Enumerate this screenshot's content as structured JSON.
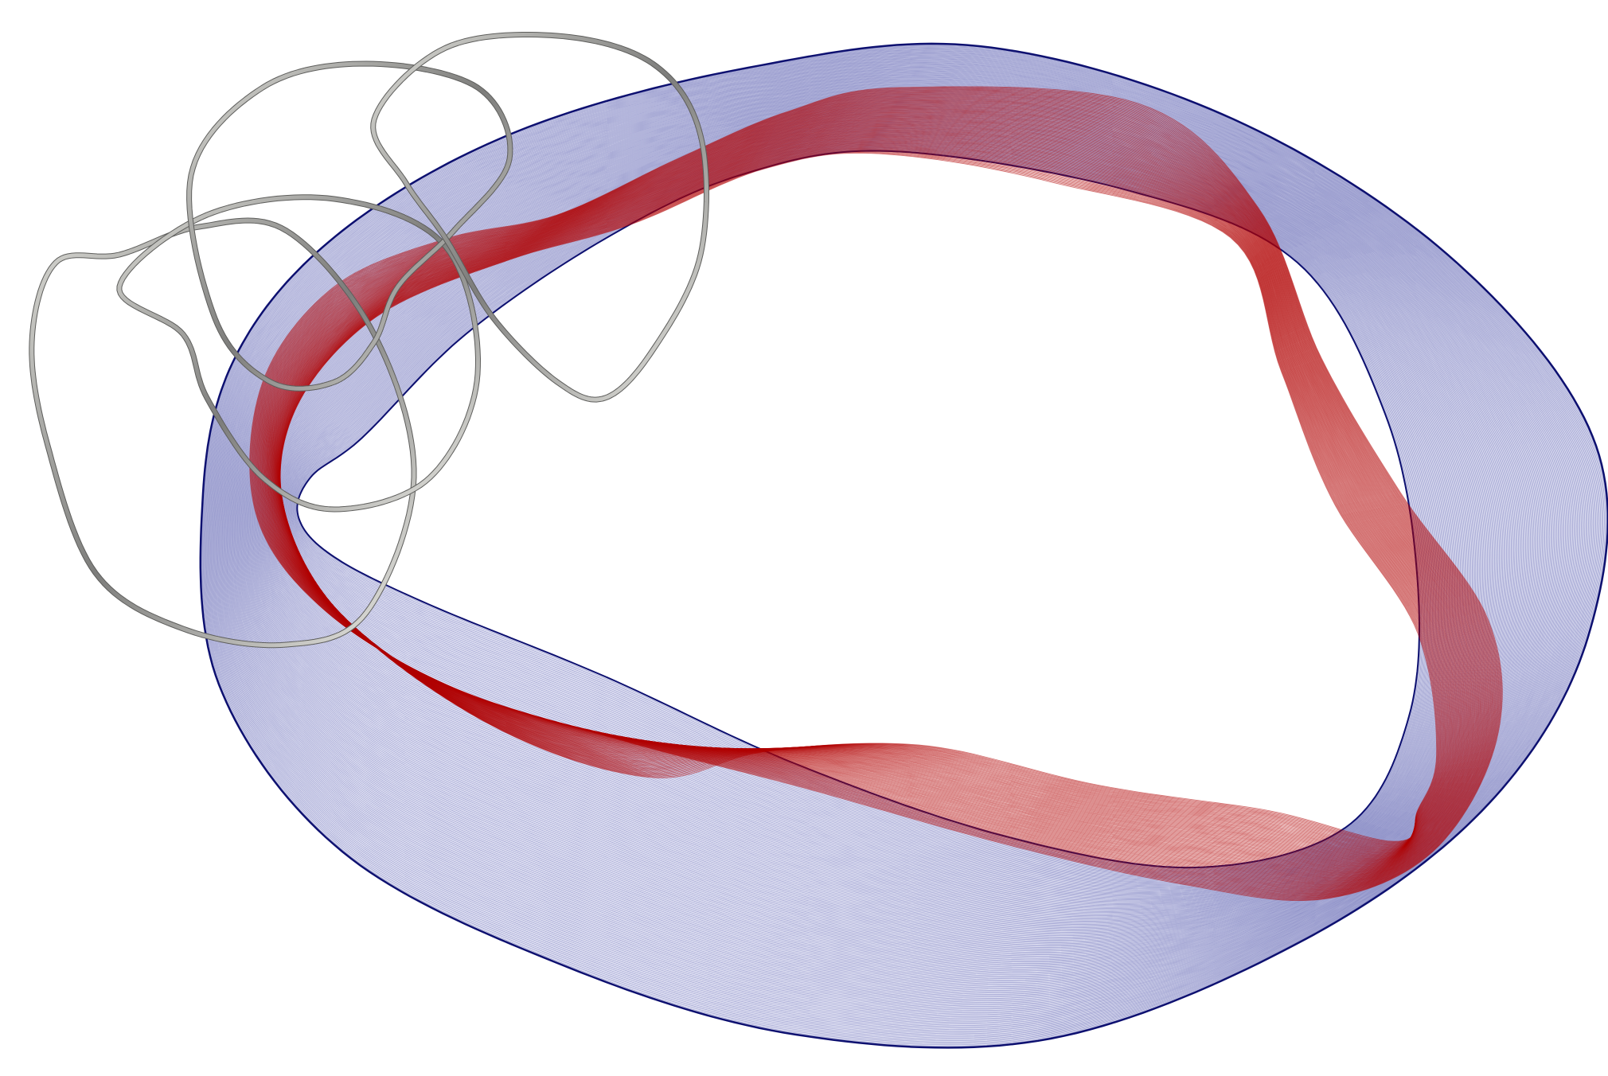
{
  "figure": {
    "caption": "",
    "components": [
      {
        "name": "outer-flux-surface",
        "color": "#1a1f8c",
        "fill_tint": "#e3e4f4",
        "line_count": 160
      },
      {
        "name": "inner-ribbon",
        "color": "#b00000",
        "line_count": 90
      },
      {
        "name": "coil-set",
        "color": "#8a8a88",
        "highlight": "#e6e6e2",
        "coil_count": 4
      }
    ]
  }
}
